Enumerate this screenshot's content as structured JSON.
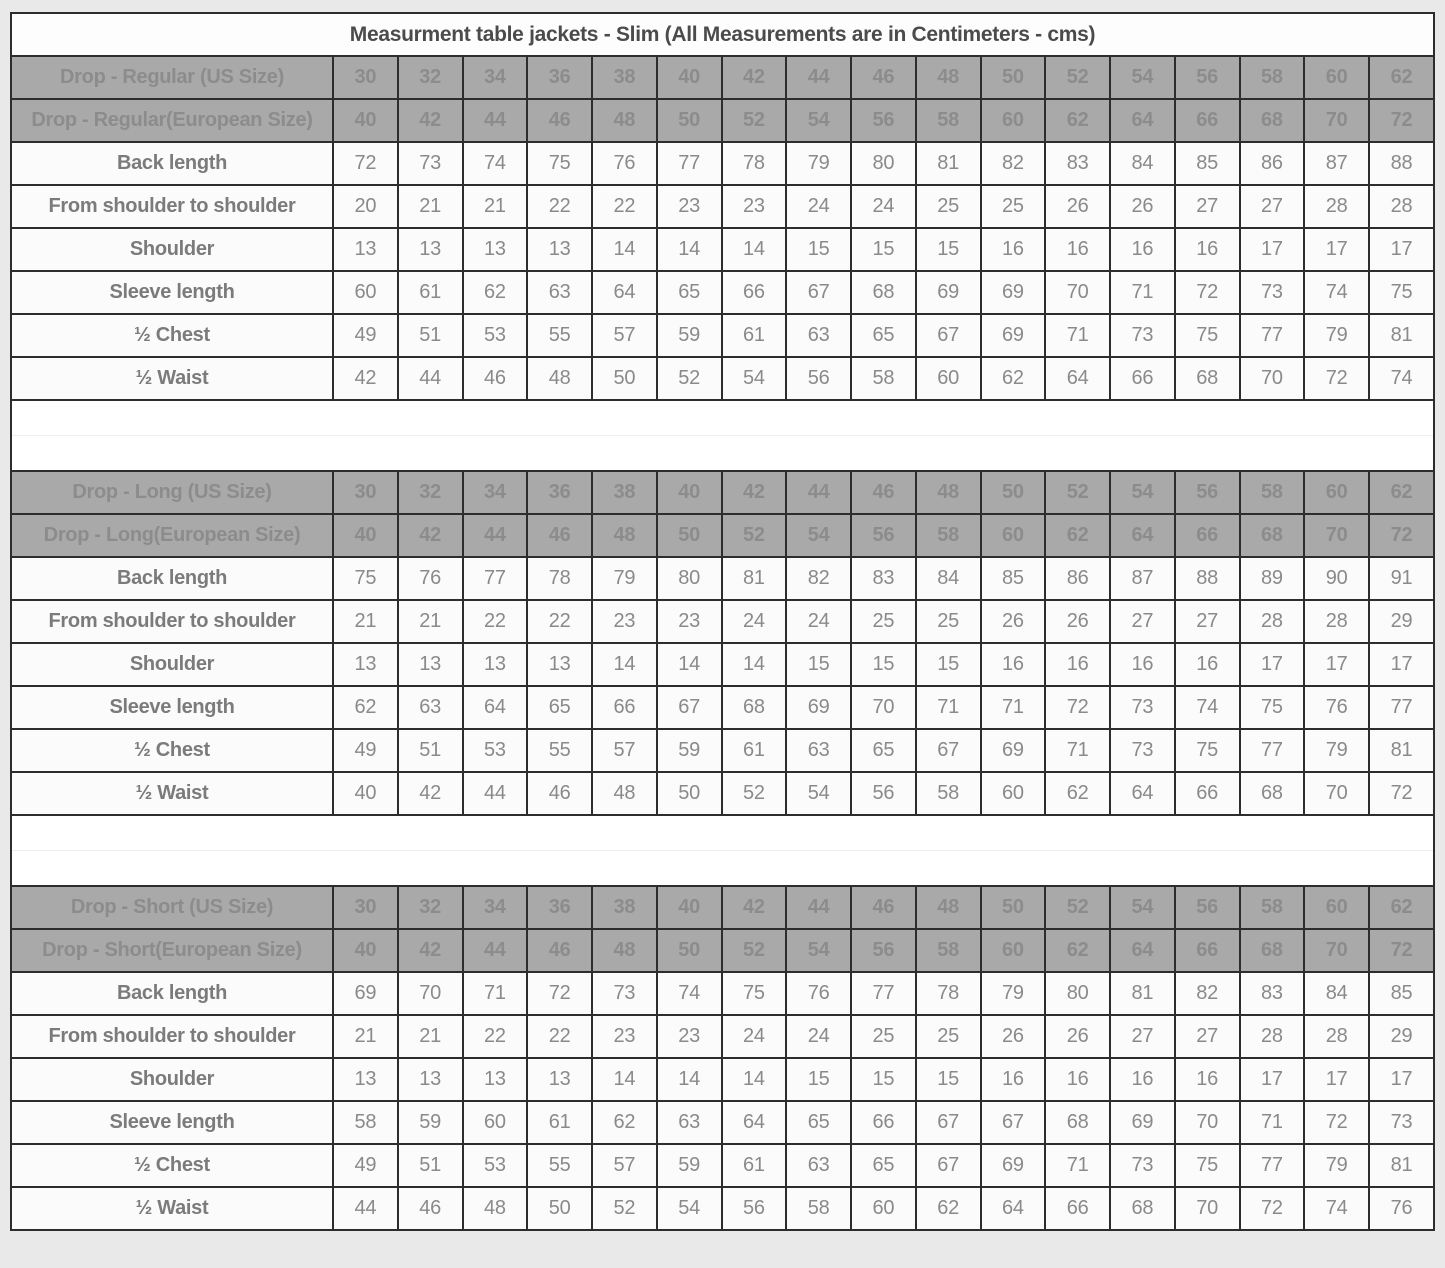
{
  "title": "Measurment table jackets - Slim (All Measurements are in Centimeters - cms)",
  "colors": {
    "page_bg": "#e9e9e9",
    "border": "#2d2d2d",
    "header_bg": "#a9a9a9",
    "header_text": "#8c8c8c",
    "body_bg": "#fbfbfb",
    "body_text": "#8a8a8a",
    "label_text": "#7b7b7b",
    "title_text": "#4b4b4b",
    "spacer_line": "#ededed"
  },
  "sections": [
    {
      "name": "Drop - Regular",
      "header_rows": [
        {
          "label": "Drop - Regular (US Size)",
          "values": [
            30,
            32,
            34,
            36,
            38,
            40,
            42,
            44,
            46,
            48,
            50,
            52,
            54,
            56,
            58,
            60,
            62
          ]
        },
        {
          "label": "Drop - Regular(European Size)",
          "values": [
            40,
            42,
            44,
            46,
            48,
            50,
            52,
            54,
            56,
            58,
            60,
            62,
            64,
            66,
            68,
            70,
            72
          ]
        }
      ],
      "rows": [
        {
          "label": "Back length",
          "values": [
            72,
            73,
            74,
            75,
            76,
            77,
            78,
            79,
            80,
            81,
            82,
            83,
            84,
            85,
            86,
            87,
            88
          ]
        },
        {
          "label": "From shoulder to shoulder",
          "values": [
            20,
            21,
            21,
            22,
            22,
            23,
            23,
            24,
            24,
            25,
            25,
            26,
            26,
            27,
            27,
            28,
            28
          ]
        },
        {
          "label": "Shoulder",
          "values": [
            13,
            13,
            13,
            13,
            14,
            14,
            14,
            15,
            15,
            15,
            16,
            16,
            16,
            16,
            17,
            17,
            17
          ]
        },
        {
          "label": "Sleeve length",
          "values": [
            60,
            61,
            62,
            63,
            64,
            65,
            66,
            67,
            68,
            69,
            69,
            70,
            71,
            72,
            73,
            74,
            75
          ]
        },
        {
          "label": "½ Chest",
          "values": [
            49,
            51,
            53,
            55,
            57,
            59,
            61,
            63,
            65,
            67,
            69,
            71,
            73,
            75,
            77,
            79,
            81
          ]
        },
        {
          "label": "½ Waist",
          "values": [
            42,
            44,
            46,
            48,
            50,
            52,
            54,
            56,
            58,
            60,
            62,
            64,
            66,
            68,
            70,
            72,
            74
          ]
        }
      ]
    },
    {
      "name": "Drop - Long",
      "header_rows": [
        {
          "label": "Drop - Long (US Size)",
          "values": [
            30,
            32,
            34,
            36,
            38,
            40,
            42,
            44,
            46,
            48,
            50,
            52,
            54,
            56,
            58,
            60,
            62
          ]
        },
        {
          "label": "Drop - Long(European Size)",
          "values": [
            40,
            42,
            44,
            46,
            48,
            50,
            52,
            54,
            56,
            58,
            60,
            62,
            64,
            66,
            68,
            70,
            72
          ]
        }
      ],
      "rows": [
        {
          "label": "Back length",
          "values": [
            75,
            76,
            77,
            78,
            79,
            80,
            81,
            82,
            83,
            84,
            85,
            86,
            87,
            88,
            89,
            90,
            91
          ]
        },
        {
          "label": "From shoulder to shoulder",
          "values": [
            21,
            21,
            22,
            22,
            23,
            23,
            24,
            24,
            25,
            25,
            26,
            26,
            27,
            27,
            28,
            28,
            29
          ]
        },
        {
          "label": "Shoulder",
          "values": [
            13,
            13,
            13,
            13,
            14,
            14,
            14,
            15,
            15,
            15,
            16,
            16,
            16,
            16,
            17,
            17,
            17
          ]
        },
        {
          "label": "Sleeve length",
          "values": [
            62,
            63,
            64,
            65,
            66,
            67,
            68,
            69,
            70,
            71,
            71,
            72,
            73,
            74,
            75,
            76,
            77
          ]
        },
        {
          "label": "½ Chest",
          "values": [
            49,
            51,
            53,
            55,
            57,
            59,
            61,
            63,
            65,
            67,
            69,
            71,
            73,
            75,
            77,
            79,
            81
          ]
        },
        {
          "label": "½ Waist",
          "values": [
            40,
            42,
            44,
            46,
            48,
            50,
            52,
            54,
            56,
            58,
            60,
            62,
            64,
            66,
            68,
            70,
            72
          ]
        }
      ]
    },
    {
      "name": "Drop - Short",
      "header_rows": [
        {
          "label": "Drop - Short (US Size)",
          "values": [
            30,
            32,
            34,
            36,
            38,
            40,
            42,
            44,
            46,
            48,
            50,
            52,
            54,
            56,
            58,
            60,
            62
          ]
        },
        {
          "label": "Drop - Short(European Size)",
          "values": [
            40,
            42,
            44,
            46,
            48,
            50,
            52,
            54,
            56,
            58,
            60,
            62,
            64,
            66,
            68,
            70,
            72
          ]
        }
      ],
      "rows": [
        {
          "label": "Back length",
          "values": [
            69,
            70,
            71,
            72,
            73,
            74,
            75,
            76,
            77,
            78,
            79,
            80,
            81,
            82,
            83,
            84,
            85
          ]
        },
        {
          "label": "From shoulder to shoulder",
          "values": [
            21,
            21,
            22,
            22,
            23,
            23,
            24,
            24,
            25,
            25,
            26,
            26,
            27,
            27,
            28,
            28,
            29
          ]
        },
        {
          "label": "Shoulder",
          "values": [
            13,
            13,
            13,
            13,
            14,
            14,
            14,
            15,
            15,
            15,
            16,
            16,
            16,
            16,
            17,
            17,
            17
          ]
        },
        {
          "label": "Sleeve length",
          "values": [
            58,
            59,
            60,
            61,
            62,
            63,
            64,
            65,
            66,
            67,
            67,
            68,
            69,
            70,
            71,
            72,
            73
          ]
        },
        {
          "label": "½ Chest",
          "values": [
            49,
            51,
            53,
            55,
            57,
            59,
            61,
            63,
            65,
            67,
            69,
            71,
            73,
            75,
            77,
            79,
            81
          ]
        },
        {
          "label": "½ Waist",
          "values": [
            44,
            46,
            48,
            50,
            52,
            54,
            56,
            58,
            60,
            62,
            64,
            66,
            68,
            70,
            72,
            74,
            76
          ]
        }
      ]
    }
  ]
}
